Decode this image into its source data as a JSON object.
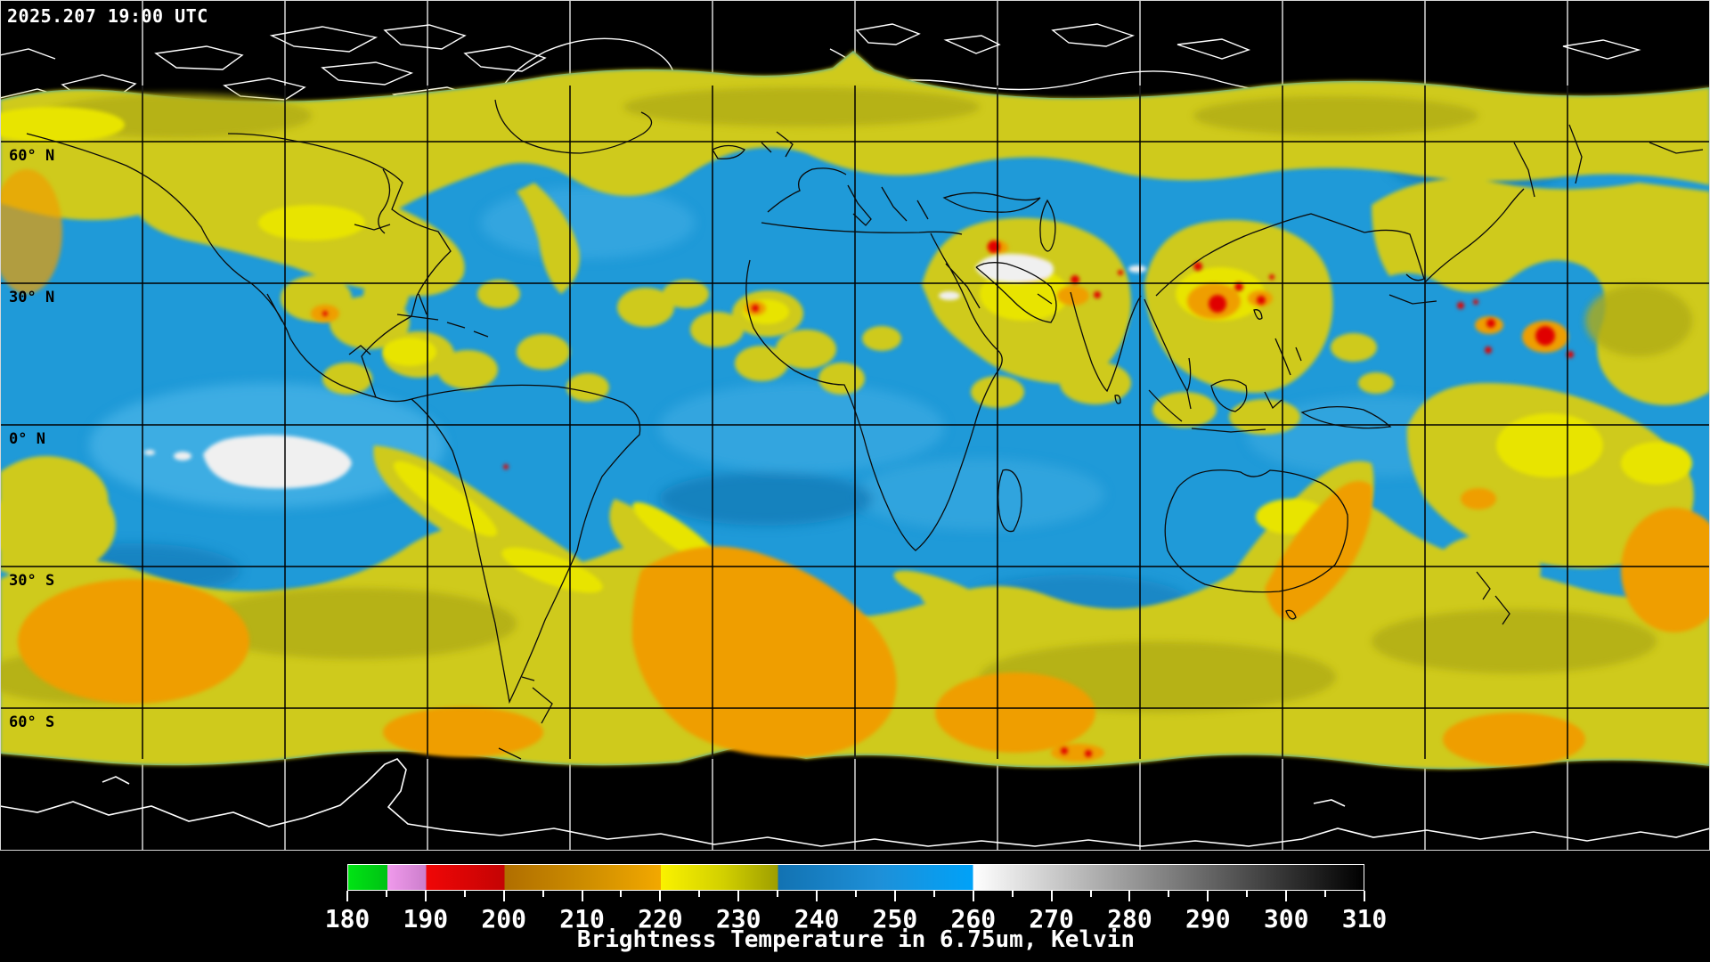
{
  "header": {
    "timestamp": "2025.207 19:00 UTC"
  },
  "map": {
    "latitude_labels": [
      {
        "text": "60° N"
      },
      {
        "text": "30° N"
      },
      {
        "text": "0° N"
      },
      {
        "text": "30° S"
      },
      {
        "text": "60° S"
      }
    ],
    "region_colors": {
      "no_data_background": "#000000",
      "ocean_moist_blue": "#1f9ad8",
      "cloud_yellow": "#cfca1e",
      "high_cloud_orange": "#ef9e00",
      "coldest_cloud_red": "#e00606",
      "warm_dry_white": "#f0f0f0",
      "graticule_over_data": "#000000",
      "graticule_over_nodata": "#ffffff"
    }
  },
  "colorbar": {
    "title": "Brightness Temperature in 6.75um, Kelvin",
    "unit": "Kelvin",
    "min": 180,
    "max": 310,
    "major_tick_step": 10,
    "minor_tick_step": 5,
    "tick_labels": [
      180,
      190,
      200,
      210,
      220,
      230,
      240,
      250,
      260,
      270,
      280,
      290,
      300,
      310
    ],
    "gradient_stops": [
      {
        "value": 180,
        "color": "#00e414"
      },
      {
        "value": 185,
        "color": "#00c214"
      },
      {
        "value": 185,
        "color": "#f09aec"
      },
      {
        "value": 190,
        "color": "#cc7ecc"
      },
      {
        "value": 190,
        "color": "#f00606"
      },
      {
        "value": 200,
        "color": "#c40404"
      },
      {
        "value": 200,
        "color": "#b06e00"
      },
      {
        "value": 210,
        "color": "#cc8c00"
      },
      {
        "value": 220,
        "color": "#f2a800"
      },
      {
        "value": 220,
        "color": "#faf200"
      },
      {
        "value": 228,
        "color": "#d2d000"
      },
      {
        "value": 235,
        "color": "#9e9e00"
      },
      {
        "value": 235,
        "color": "#1272b2"
      },
      {
        "value": 248,
        "color": "#1e90d8"
      },
      {
        "value": 260,
        "color": "#00a2f8"
      },
      {
        "value": 260,
        "color": "#ffffff"
      },
      {
        "value": 310,
        "color": "#000000"
      }
    ]
  },
  "chart_data": {
    "type": "heatmap",
    "title": "Brightness Temperature in 6.75um, Kelvin",
    "timestamp": "2025.207 19:00 UTC",
    "colorbar_range": [
      180,
      310
    ],
    "colorbar_ticks": [
      180,
      190,
      200,
      210,
      220,
      230,
      240,
      250,
      260,
      270,
      280,
      290,
      300,
      310
    ],
    "latitude_gridlines_deg": [
      60,
      30,
      0,
      -30,
      -60
    ],
    "longitude_gridline_spacing_deg": 30
  }
}
